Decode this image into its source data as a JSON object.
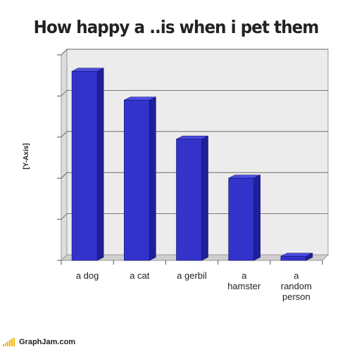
{
  "chart_data": {
    "type": "bar",
    "title": "How happy a ..is when i pet them",
    "ylabel": "[Y-Axis]",
    "xlabel": "",
    "categories": [
      [
        "a dog"
      ],
      [
        "a cat"
      ],
      [
        "a gerbil"
      ],
      [
        "a",
        "hamster"
      ],
      [
        "a",
        "random",
        "person"
      ]
    ],
    "values": [
      92,
      78,
      59,
      40,
      2
    ],
    "ylim": [
      0,
      100
    ],
    "grid": true,
    "bar_color": "#3333cc",
    "bar_top_color": "#4d4de6",
    "bar_side_color": "#1f1f99"
  },
  "footer": {
    "site": "GraphJam.com"
  }
}
